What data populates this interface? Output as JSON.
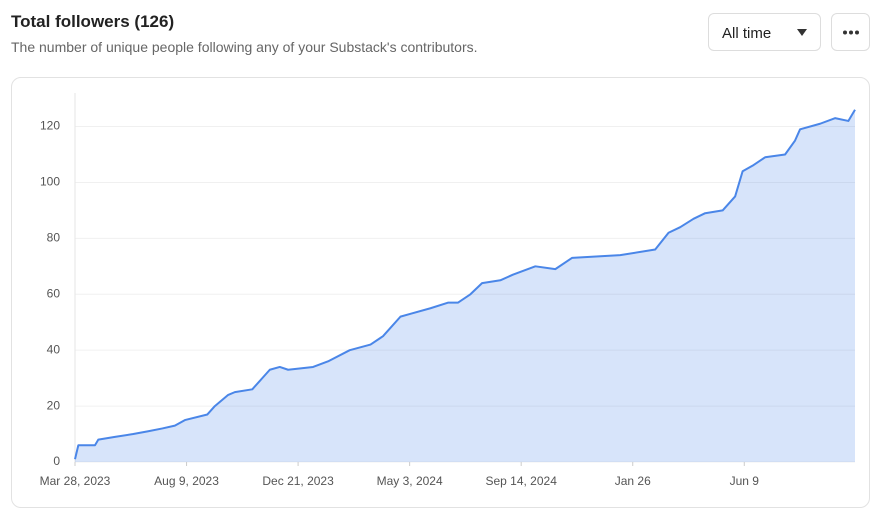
{
  "header": {
    "title": "Total followers (126)",
    "subtitle": "The number of unique people following any of your Substack's contributors.",
    "dropdown": "All time"
  },
  "chart_data": {
    "type": "line",
    "series": [
      {
        "name": "Total followers",
        "color": "#4a86e8",
        "x": [
          0,
          4,
          24,
          28,
          48,
          70,
          88,
          105,
          120,
          132,
          159,
          168,
          184,
          192,
          213,
          225,
          234,
          246,
          256,
          286,
          304,
          330,
          355,
          370,
          379,
          391,
          403,
          427,
          448,
          460,
          475,
          489,
          511,
          526,
          553,
          577,
          597,
          655,
          697,
          713,
          727,
          743,
          757,
          778,
          793,
          802,
          814,
          829,
          853,
          865,
          871,
          895,
          913,
          929,
          937
        ],
        "values": [
          1,
          6,
          6,
          8,
          9,
          10,
          11,
          12,
          13,
          15,
          17,
          20,
          24,
          25,
          26,
          30,
          33,
          34,
          33,
          34,
          36,
          40,
          42,
          45,
          48,
          52,
          53,
          55,
          57,
          57,
          60,
          64,
          65,
          67,
          70,
          69,
          73,
          74,
          76,
          82,
          84,
          87,
          89,
          90,
          95,
          104,
          106,
          109,
          110,
          115,
          119,
          121,
          123,
          122,
          126
        ]
      }
    ],
    "xlim": [
      0,
      937
    ],
    "xticks": [
      {
        "value": 0,
        "label": "Mar 28, 2023"
      },
      {
        "value": 134,
        "label": "Aug 9, 2023"
      },
      {
        "value": 268,
        "label": "Dec 21, 2023"
      },
      {
        "value": 402,
        "label": "May 3, 2024"
      },
      {
        "value": 536,
        "label": "Sep 14, 2024"
      },
      {
        "value": 670,
        "label": "Jan 26"
      },
      {
        "value": 804,
        "label": "Jun 9"
      }
    ],
    "ylim": [
      0,
      132
    ],
    "yticks": [
      0,
      20,
      40,
      60,
      80,
      100,
      120
    ],
    "grid": true
  }
}
